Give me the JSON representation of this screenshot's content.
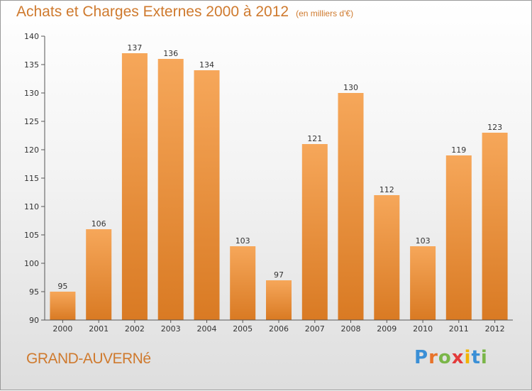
{
  "header": {
    "title": "Achats et Charges Externes 2000 à 2012",
    "subtitle": "(en milliers d'€)"
  },
  "footer": {
    "place": "GRAND-AUVERNé",
    "logo_letters": [
      "P",
      "r",
      "o",
      "x",
      "i",
      "t",
      "i"
    ],
    "logo_colors": [
      "#3a8fd6",
      "#e8732a",
      "#7ab648",
      "#e33b3b",
      "#f2b400",
      "#3a8fd6",
      "#7ab648"
    ]
  },
  "colors": {
    "bar_light": "#f6a75a",
    "bar_dark": "#d97a23",
    "axis": "#555555",
    "text": "#333333",
    "accent": "#cf7a2e"
  },
  "chart_data": {
    "type": "bar",
    "title": "Achats et Charges Externes 2000 à 2012",
    "subtitle": "(en milliers d'€)",
    "categories": [
      "2000",
      "2001",
      "2002",
      "2003",
      "2004",
      "2005",
      "2006",
      "2007",
      "2008",
      "2009",
      "2010",
      "2011",
      "2012"
    ],
    "values": [
      95,
      106,
      137,
      136,
      134,
      103,
      97,
      121,
      130,
      112,
      103,
      119,
      123
    ],
    "ylim": [
      90,
      140
    ],
    "yticks": [
      90,
      95,
      100,
      105,
      110,
      115,
      120,
      125,
      130,
      135,
      140
    ],
    "grid": false,
    "legend": "none"
  }
}
